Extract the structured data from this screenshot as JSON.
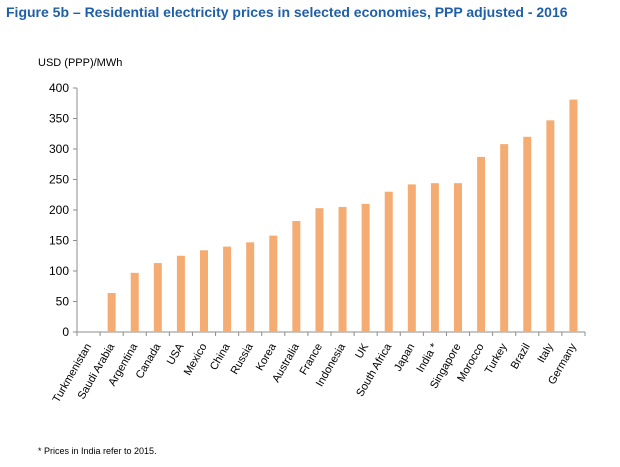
{
  "chart_data": {
    "type": "bar",
    "title": "Figure 5b – Residential electricity prices in selected economies, PPP adjusted - 2016",
    "ylabel": "USD (PPP)/MWh",
    "xlabel": "",
    "ylim": [
      0,
      400
    ],
    "yticks": [
      0,
      50,
      100,
      150,
      200,
      250,
      300,
      350,
      400
    ],
    "grid": false,
    "legend": "none",
    "bar_color": "#f5ac72",
    "categories": [
      "Turkmenistan",
      "Saudi Arabia",
      "Argentina",
      "Canada",
      "USA",
      "Mexico",
      "China",
      "Russia",
      "Korea",
      "Australia",
      "France",
      "Indonesia",
      "UK",
      "South Africa",
      "Japan",
      "India *",
      "Singapore",
      "Morocco",
      "Turkey",
      "Brazil",
      "Italy",
      "Germany"
    ],
    "values": [
      0,
      64,
      97,
      113,
      125,
      134,
      140,
      147,
      158,
      182,
      203,
      205,
      210,
      230,
      242,
      244,
      244,
      287,
      308,
      320,
      347,
      381
    ],
    "footnote": "* Prices in India refer to 2015."
  }
}
